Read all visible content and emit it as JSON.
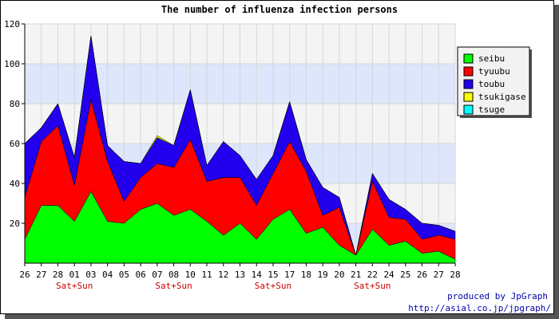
{
  "chart_data": {
    "type": "area",
    "stacked": true,
    "title": "The number of influenza infection persons",
    "categories": [
      "26",
      "27",
      "28",
      "01",
      "03",
      "04",
      "05",
      "06",
      "07",
      "08",
      "10",
      "11",
      "12",
      "13",
      "14",
      "15",
      "17",
      "18",
      "19",
      "20",
      "21",
      "22",
      "24",
      "25",
      "26",
      "27",
      "28"
    ],
    "weekend_labels": [
      {
        "text": "Sat+Sun",
        "index": 3
      },
      {
        "text": "Sat+Sun",
        "index": 9
      },
      {
        "text": "Sat+Sun",
        "index": 15
      },
      {
        "text": "Sat+Sun",
        "index": 21
      }
    ],
    "ylim": [
      0,
      120
    ],
    "yticks": [
      20,
      40,
      60,
      80,
      100,
      120
    ],
    "grid": true,
    "legend_position": "top-right",
    "series": [
      {
        "name": "seibu",
        "color": "#00ff00",
        "values": [
          12,
          29,
          29,
          21,
          36,
          21,
          20,
          27,
          30,
          24,
          27,
          21,
          14,
          20,
          12,
          22,
          27,
          15,
          18,
          9,
          4,
          17,
          9,
          11,
          5,
          6,
          2
        ]
      },
      {
        "name": "tyuubu",
        "color": "#ff0000",
        "values": [
          21,
          32,
          40,
          18,
          46,
          30,
          11,
          16,
          20,
          24,
          35,
          20,
          29,
          23,
          17,
          23,
          34,
          31,
          6,
          19,
          0,
          24,
          14,
          11,
          7,
          8,
          10
        ]
      },
      {
        "name": "toubu",
        "color": "#2200ee",
        "values": [
          27,
          7,
          11,
          14,
          32,
          8,
          20,
          7,
          13,
          11,
          25,
          8,
          18,
          11,
          13,
          9,
          20,
          6,
          14,
          5,
          0,
          4,
          9,
          5,
          8,
          5,
          4
        ]
      },
      {
        "name": "tsukigase",
        "color": "#ffff00",
        "values": [
          0,
          0,
          0,
          0,
          0,
          0,
          0,
          0,
          1,
          0,
          0,
          0,
          0,
          0,
          0,
          0,
          0,
          0,
          0,
          0,
          0,
          0,
          0,
          0,
          0,
          0,
          0
        ]
      },
      {
        "name": "tsuge",
        "color": "#00ffff",
        "values": [
          0,
          0,
          0,
          0,
          0,
          0,
          0,
          0,
          0,
          0,
          0,
          0,
          0,
          0,
          0,
          0,
          0,
          0,
          0,
          0,
          0,
          0,
          0,
          0,
          0,
          0,
          0
        ]
      }
    ]
  },
  "credit": {
    "line1": "produced by JpGraph",
    "line2": "http://asial.co.jp/jpgraph/"
  }
}
